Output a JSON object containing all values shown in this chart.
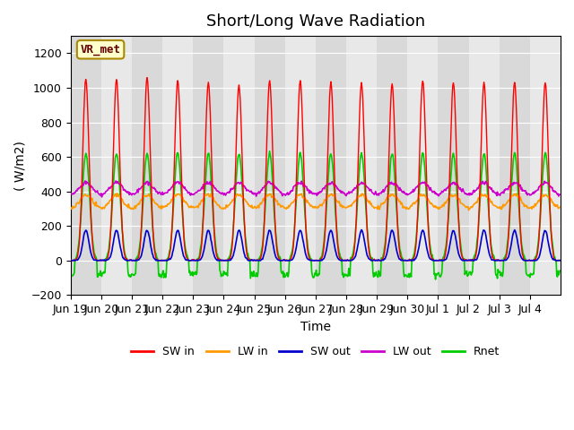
{
  "title": "Short/Long Wave Radiation",
  "xlabel": "Time",
  "ylabel": "( W/m2)",
  "ylim": [
    -200,
    1300
  ],
  "yticks": [
    -200,
    0,
    200,
    400,
    600,
    800,
    1000,
    1200
  ],
  "legend_labels": [
    "SW in",
    "LW in",
    "SW out",
    "LW out",
    "Rnet"
  ],
  "legend_colors": [
    "#ff0000",
    "#ff9900",
    "#0000cc",
    "#cc00cc",
    "#00cc00"
  ],
  "station_label": "VR_met",
  "background_color": "#ffffff",
  "plot_bg_color": "#e8e8e8",
  "n_days": 16,
  "x_labels": [
    "Jun 19",
    "Jun 20",
    "Jun 21",
    "Jun 22",
    "Jun 23",
    "Jun 24",
    "Jun 25",
    "Jun 26",
    "Jun 27",
    "Jun 28",
    "Jun 29",
    "Jun 30",
    "Jul 1",
    "Jul 2",
    "Jul 3",
    "Jul 4"
  ],
  "sw_in_peak": [
    1050,
    1050,
    1060,
    1040,
    1030,
    1010,
    1040,
    1040,
    1030,
    1025,
    1020,
    1040,
    1030,
    1030,
    1030,
    1030
  ],
  "lw_in_base": 300,
  "lw_in_day": 380,
  "sw_out_peak": 175,
  "lw_out_base": 380,
  "lw_out_day": 450,
  "rnet_peak": 620,
  "rnet_night": -80,
  "title_fontsize": 13,
  "axis_label_fontsize": 10,
  "tick_fontsize": 9
}
